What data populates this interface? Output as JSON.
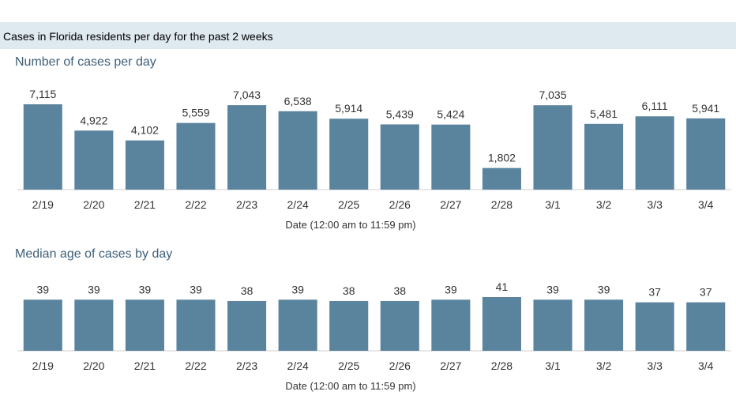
{
  "header": {
    "title": "Cases in Florida residents per day for the past 2 weeks"
  },
  "colors": {
    "bar": "#5a849e",
    "banner": "#dfe9f0",
    "title": "#3e5f79"
  },
  "chart_data": [
    {
      "type": "bar",
      "title": "Number of cases per day",
      "xlabel": "Date (12:00 am to 11:59 pm)",
      "ylabel": "",
      "categories": [
        "2/19",
        "2/20",
        "2/21",
        "2/22",
        "2/23",
        "2/24",
        "2/25",
        "2/26",
        "2/27",
        "2/28",
        "3/1",
        "3/2",
        "3/3",
        "3/4"
      ],
      "values": [
        7115,
        4922,
        4102,
        5559,
        7043,
        6538,
        5914,
        5439,
        5424,
        1802,
        7035,
        5481,
        6111,
        5941
      ],
      "value_labels": [
        "7,115",
        "4,922",
        "4,102",
        "5,559",
        "7,043",
        "6,538",
        "5,914",
        "5,439",
        "5,424",
        "1,802",
        "7,035",
        "5,481",
        "6,111",
        "5,941"
      ],
      "ylim": [
        0,
        7115
      ],
      "grid": false,
      "legend": "none"
    },
    {
      "type": "bar",
      "title": "Median age of cases by day",
      "xlabel": "Date (12:00 am to 11:59 pm)",
      "ylabel": "",
      "categories": [
        "2/19",
        "2/20",
        "2/21",
        "2/22",
        "2/23",
        "2/24",
        "2/25",
        "2/26",
        "2/27",
        "2/28",
        "3/1",
        "3/2",
        "3/3",
        "3/4"
      ],
      "values": [
        39,
        39,
        39,
        39,
        38,
        39,
        38,
        38,
        39,
        41,
        39,
        39,
        37,
        37
      ],
      "value_labels": [
        "39",
        "39",
        "39",
        "39",
        "38",
        "39",
        "38",
        "38",
        "39",
        "41",
        "39",
        "39",
        "37",
        "37"
      ],
      "ylim": [
        0,
        41
      ],
      "grid": false,
      "legend": "none"
    }
  ]
}
